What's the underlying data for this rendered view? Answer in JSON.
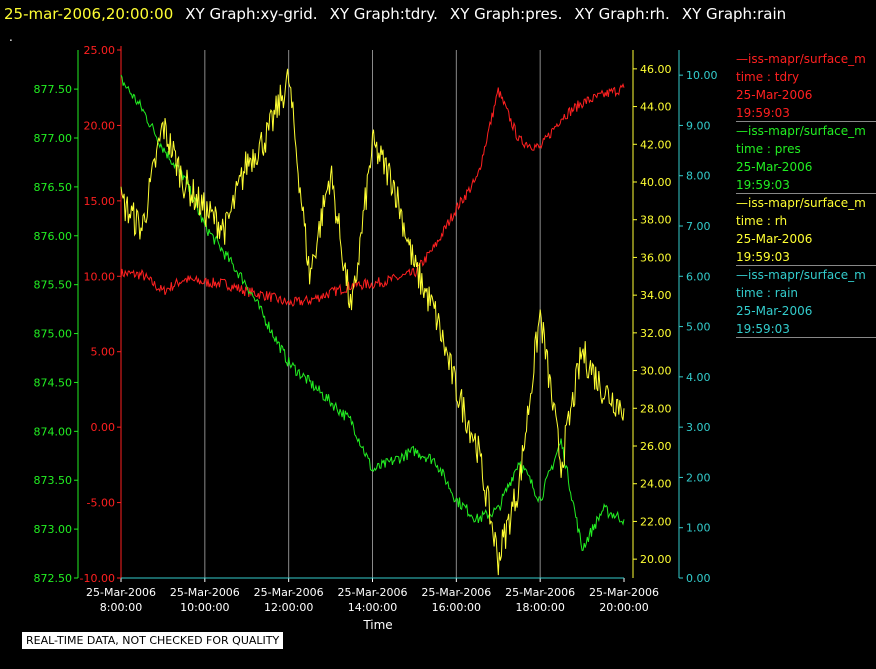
{
  "header": {
    "date": "25-mar-2006,20:00:00",
    "items": [
      "XY Graph:xy-grid.",
      "XY Graph:tdry.",
      "XY Graph:pres.",
      "XY Graph:rh.",
      "XY Graph:rain"
    ],
    "dot": "."
  },
  "note": "REAL-TIME DATA, NOT CHECKED FOR QUALITY",
  "colors": {
    "tdry": "#ff2020",
    "pres": "#22ee22",
    "rh": "#ffff33",
    "rain": "#33cccc",
    "grid": "#8a8a8a",
    "text": "#ffffff"
  },
  "legend": [
    {
      "name": "—iss-mapr/surface_m",
      "line1": "time : tdry",
      "line2": "25-Mar-2006",
      "line3": "19:59:03",
      "color": "#ff2020"
    },
    {
      "name": "—iss-mapr/surface_m",
      "line1": "time : pres",
      "line2": "25-Mar-2006",
      "line3": "19:59:03",
      "color": "#22ee22"
    },
    {
      "name": "—iss-mapr/surface_m",
      "line1": "time : rh",
      "line2": "25-Mar-2006",
      "line3": "19:59:03",
      "color": "#ffff33"
    },
    {
      "name": "—iss-mapr/surface_m",
      "line1": "time : rain",
      "line2": "25-Mar-2006",
      "line3": "19:59:03",
      "color": "#33cccc"
    }
  ],
  "chart_data": {
    "type": "line",
    "xlabel": "Time",
    "x_ticks": [
      [
        "25-Mar-2006",
        "8:00:00"
      ],
      [
        "25-Mar-2006",
        "10:00:00"
      ],
      [
        "25-Mar-2006",
        "12:00:00"
      ],
      [
        "25-Mar-2006",
        "14:00:00"
      ],
      [
        "25-Mar-2006",
        "16:00:00"
      ],
      [
        "25-Mar-2006",
        "18:00:00"
      ],
      [
        "25-Mar-2006",
        "20:00:00"
      ]
    ],
    "xlim": [
      "08:00",
      "20:00"
    ],
    "axes": {
      "tdry": {
        "range": [
          -10,
          25
        ],
        "ticks": [
          "-10.00",
          "-5.00",
          "0.00",
          "5.00",
          "10.00",
          "15.00",
          "20.00",
          "25.00"
        ]
      },
      "pres": {
        "range": [
          872.5,
          877.9
        ],
        "ticks": [
          "872.50",
          "873.00",
          "873.50",
          "874.00",
          "874.50",
          "875.00",
          "875.50",
          "876.00",
          "876.50",
          "877.00",
          "877.50"
        ]
      },
      "rh": {
        "range": [
          19,
          47
        ],
        "ticks": [
          "20.00",
          "22.00",
          "24.00",
          "26.00",
          "28.00",
          "30.00",
          "32.00",
          "34.00",
          "36.00",
          "38.00",
          "40.00",
          "42.00",
          "44.00",
          "46.00"
        ]
      },
      "rain": {
        "range": [
          0,
          10.5
        ],
        "ticks": [
          "0.00",
          "1.00",
          "2.00",
          "3.00",
          "4.00",
          "5.00",
          "6.00",
          "7.00",
          "8.00",
          "9.00",
          "10.00"
        ]
      }
    },
    "series": [
      {
        "key": "tdry",
        "x": [
          "08:00",
          "08:30",
          "09:00",
          "09:30",
          "10:00",
          "10:30",
          "11:00",
          "11:30",
          "12:00",
          "12:30",
          "13:00",
          "13:30",
          "14:00",
          "14:30",
          "15:00",
          "15:30",
          "16:00",
          "16:30",
          "17:00",
          "17:30",
          "18:00",
          "18:30",
          "19:00",
          "19:30",
          "20:00"
        ],
        "values": [
          10.2,
          10.1,
          9.0,
          9.8,
          9.6,
          9.5,
          9.0,
          8.7,
          8.2,
          8.4,
          8.9,
          9.4,
          9.5,
          9.8,
          10.2,
          12.0,
          14.5,
          16.5,
          22.3,
          19.0,
          18.5,
          20.5,
          21.5,
          22.0,
          22.5
        ]
      },
      {
        "key": "pres",
        "x": [
          "08:00",
          "08:30",
          "09:00",
          "09:30",
          "10:00",
          "10:30",
          "11:00",
          "11:30",
          "12:00",
          "12:30",
          "13:00",
          "13:30",
          "14:00",
          "14:30",
          "15:00",
          "15:30",
          "16:00",
          "16:30",
          "17:00",
          "17:30",
          "18:00",
          "18:30",
          "19:00",
          "19:30",
          "20:00"
        ],
        "values": [
          877.6,
          877.3,
          876.9,
          876.6,
          876.1,
          875.8,
          875.5,
          875.1,
          874.7,
          874.5,
          874.3,
          874.1,
          873.6,
          873.7,
          873.8,
          873.7,
          873.3,
          873.1,
          873.2,
          873.7,
          873.3,
          873.9,
          872.8,
          873.2,
          873.1
        ]
      },
      {
        "key": "rh",
        "x": [
          "08:00",
          "08:30",
          "09:00",
          "09:30",
          "10:00",
          "10:30",
          "11:00",
          "11:30",
          "12:00",
          "12:30",
          "13:00",
          "13:30",
          "14:00",
          "14:30",
          "15:00",
          "15:30",
          "16:00",
          "16:30",
          "17:00",
          "17:30",
          "18:00",
          "18:30",
          "19:00",
          "19:30",
          "20:00"
        ],
        "values": [
          39.0,
          37.5,
          43.0,
          40.0,
          38.5,
          37.5,
          41.0,
          42.5,
          45.5,
          35.0,
          40.5,
          33.0,
          42.0,
          40.0,
          35.5,
          33.0,
          29.0,
          26.0,
          20.0,
          24.0,
          33.0,
          25.0,
          31.0,
          29.0,
          28.0
        ]
      },
      {
        "key": "rain",
        "x": [
          "08:00",
          "20:00"
        ],
        "values": [
          0.0,
          0.0
        ]
      }
    ]
  }
}
